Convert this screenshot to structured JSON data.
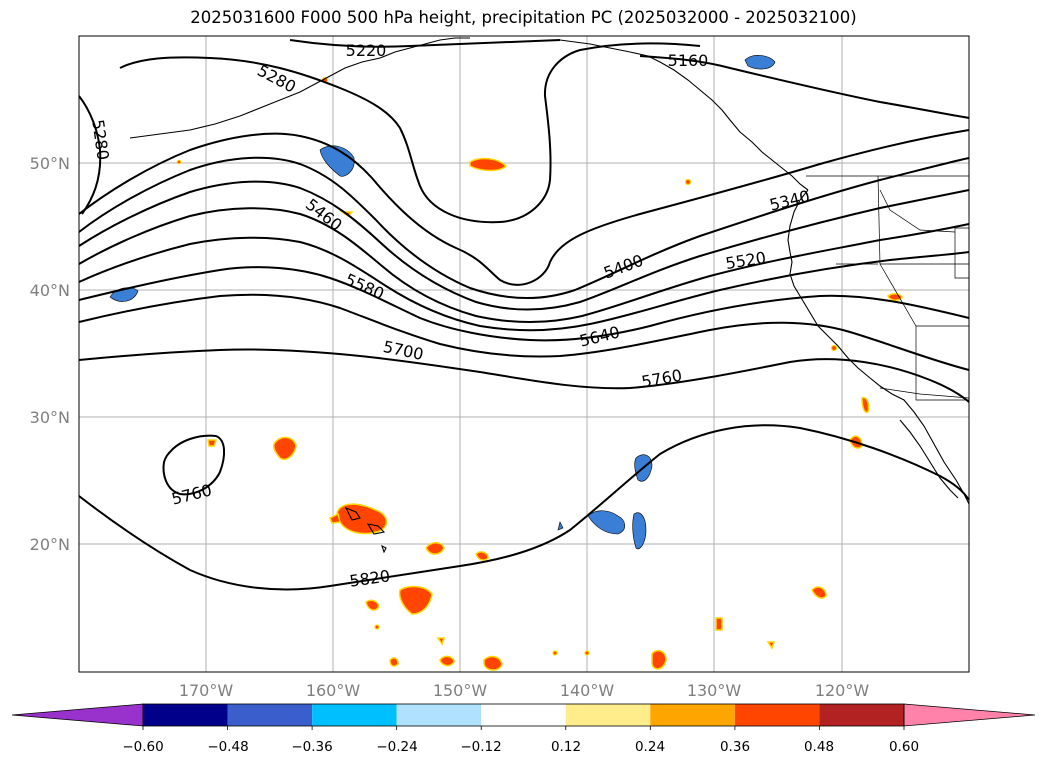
{
  "title": "2025031600 F000 500 hPa height, precipitation PC (2025032000 - 2025032100)",
  "lat_labels": [
    "50°N",
    "40°N",
    "30°N",
    "20°N"
  ],
  "lon_labels": [
    "170°W",
    "160°W",
    "150°W",
    "140°W",
    "130°W",
    "120°W"
  ],
  "contour_labels": [
    "5220",
    "5160",
    "5280",
    "5280",
    "5460",
    "5340",
    "5400",
    "5520",
    "5580",
    "5640",
    "5700",
    "5760",
    "5760",
    "5820"
  ],
  "colorbar": {
    "ticks": [
      "−0.60",
      "−0.48",
      "−0.36",
      "−0.24",
      "−0.12",
      "0.12",
      "0.24",
      "0.36",
      "0.48",
      "0.60"
    ],
    "colors": [
      "#9932cc",
      "#00008b",
      "#3a5fcd",
      "#00bfff",
      "#b0e2ff",
      "#ffffff",
      "#ffec8b",
      "#ffa500",
      "#ff4500",
      "#b22222",
      "#ff82ab"
    ]
  },
  "colors": {
    "negative_fill": "#3a7fd5",
    "positive_fill": "#ff4500",
    "positive_edge": "#ffd700"
  }
}
